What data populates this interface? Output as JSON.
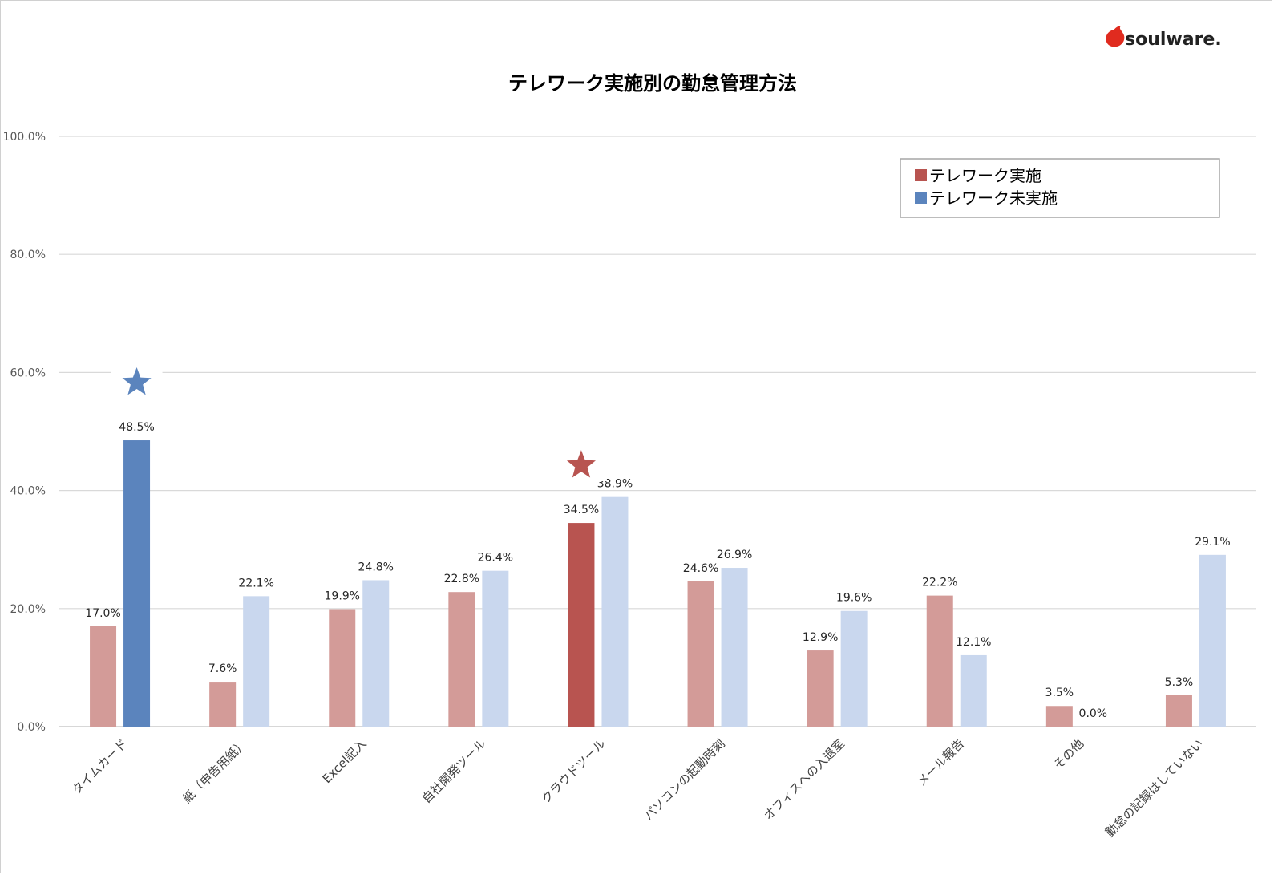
{
  "logo": {
    "text": "soulware.",
    "accent_color": "#e02b1f"
  },
  "chart_data": {
    "type": "bar",
    "title": "テレワーク実施別の勤怠管理方法",
    "xlabel": "",
    "ylabel": "",
    "ylim": [
      0,
      100
    ],
    "y_ticks": [
      "0.0%",
      "20.0%",
      "40.0%",
      "60.0%",
      "80.0%",
      "100.0%"
    ],
    "grid": true,
    "legend_position": "top-right",
    "categories": [
      "タイムカード",
      "紙（申告用紙）",
      "Excel記入",
      "自社開発ツール",
      "クラウドツール",
      "パソコンの起動時刻",
      "オフィスへの入退室",
      "メール報告",
      "その他",
      "勤怠の記録はしていない"
    ],
    "series": [
      {
        "name": "テレワーク実施",
        "color": "#b85450",
        "muted_color": "#d39b98",
        "values": [
          17.0,
          7.6,
          19.9,
          22.8,
          34.5,
          24.6,
          12.9,
          22.2,
          3.5,
          5.3
        ],
        "labels": [
          "17.0%",
          "7.6%",
          "19.9%",
          "22.8%",
          "34.5%",
          "24.6%",
          "12.9%",
          "22.2%",
          "3.5%",
          "5.3%"
        ],
        "highlight_index": 4
      },
      {
        "name": "テレワーク未実施",
        "color": "#5b84bd",
        "muted_color": "#c9d7ee",
        "values": [
          48.5,
          22.1,
          24.8,
          26.4,
          38.9,
          26.9,
          19.6,
          12.1,
          0.0,
          29.1
        ],
        "labels": [
          "48.5%",
          "22.1%",
          "24.8%",
          "26.4%",
          "38.9%",
          "26.9%",
          "19.6%",
          "12.1%",
          "0.0%",
          "29.1%"
        ],
        "highlight_index": 0
      }
    ],
    "annotations": [
      {
        "type": "star",
        "series_index": 1,
        "category_index": 0,
        "color": "#5b84bd"
      },
      {
        "type": "star",
        "series_index": 0,
        "category_index": 4,
        "color": "#b85450"
      }
    ]
  }
}
